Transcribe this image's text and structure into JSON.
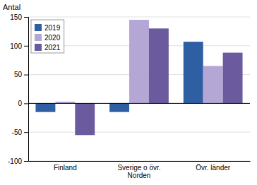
{
  "chart_data": {
    "type": "bar",
    "ylabel": "Antal",
    "categories": [
      "Finland",
      "Sverige o övr.\nNorden",
      "Övr. länder"
    ],
    "series": [
      {
        "name": "2019",
        "color": "#2e5fa3",
        "values": [
          -15,
          -15,
          107
        ]
      },
      {
        "name": "2020",
        "color": "#b4a7d6",
        "values": [
          3,
          145,
          65
        ]
      },
      {
        "name": "2021",
        "color": "#6b5b9e",
        "values": [
          -55,
          130,
          88
        ]
      }
    ],
    "ylim": [
      -100,
      150
    ],
    "yticks": [
      -100,
      -50,
      0,
      50,
      100,
      150
    ],
    "grid": true,
    "legend": "top-left"
  }
}
